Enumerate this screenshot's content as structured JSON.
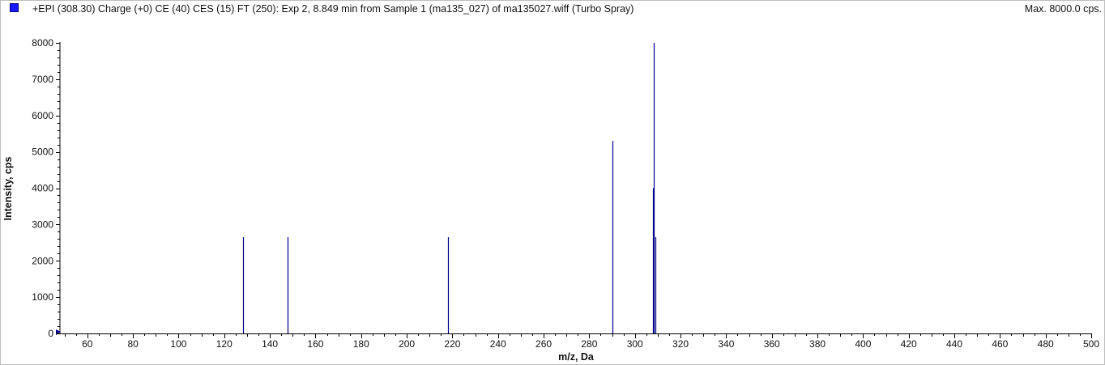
{
  "header": {
    "title": "+EPI (308.30) Charge (+0) CE (40) CES (15) FT (250): Exp 2, 8.849 min from Sample 1 (ma135_027) of ma135027.wiff (Turbo Spray)",
    "max_label": "Max. 8000.0 cps."
  },
  "colors": {
    "series": "#1a1aff",
    "peak": "#00008b",
    "axis": "#000000"
  },
  "chart_data": {
    "type": "bar",
    "title": "+EPI (308.30) Charge (+0) CE (40) CES (15) FT (250): Exp 2, 8.849 min from Sample 1 (ma135_027) of ma135027.wiff (Turbo Spray)",
    "xlabel": "m/z, Da",
    "ylabel": "Intensity, cps",
    "xlim": [
      48,
      500
    ],
    "ylim": [
      0,
      8000
    ],
    "xticks": [
      60,
      80,
      100,
      120,
      140,
      160,
      180,
      200,
      220,
      240,
      260,
      280,
      300,
      320,
      340,
      360,
      380,
      400,
      420,
      440,
      460,
      480,
      500
    ],
    "yticks": [
      0,
      1000,
      2000,
      3000,
      4000,
      5000,
      6000,
      7000,
      8000
    ],
    "grid": false,
    "legend": "top-left",
    "peaks": [
      {
        "mz": 128.1,
        "intensity": 2650
      },
      {
        "mz": 147.9,
        "intensity": 2650
      },
      {
        "mz": 218.1,
        "intensity": 2650
      },
      {
        "mz": 290.0,
        "intensity": 5300
      },
      {
        "mz": 308.0,
        "intensity": 4000
      },
      {
        "mz": 308.3,
        "intensity": 8000
      },
      {
        "mz": 309.1,
        "intensity": 2650
      }
    ]
  }
}
